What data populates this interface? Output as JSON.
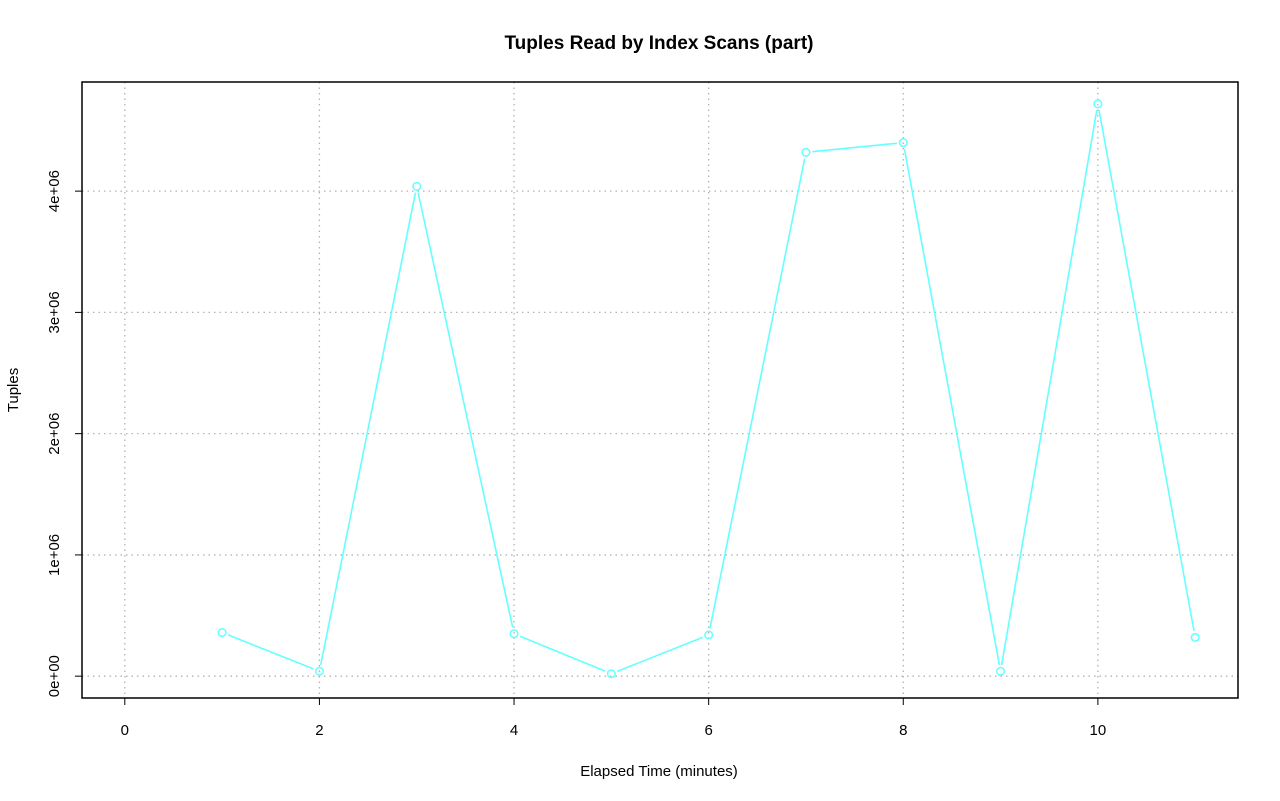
{
  "chart_data": {
    "type": "line",
    "title": "Tuples Read by Index Scans (part)",
    "xlabel": "Elapsed Time (minutes)",
    "ylabel": "Tuples",
    "xlim": [
      -0.44,
      11.44
    ],
    "ylim": [
      -180000,
      4900000
    ],
    "xticks": [
      0,
      2,
      4,
      6,
      8,
      10
    ],
    "xtick_labels": [
      "0",
      "2",
      "4",
      "6",
      "8",
      "10"
    ],
    "yticks": [
      0,
      1000000,
      2000000,
      3000000,
      4000000
    ],
    "ytick_labels": [
      "0e+00",
      "1e+06",
      "2e+06",
      "3e+06",
      "4e+06"
    ],
    "grid": true,
    "grid_style": "dotted",
    "series": [
      {
        "color": "#66ffff",
        "marker": "open-circle",
        "x": [
          1,
          2,
          3,
          4,
          5,
          6,
          7,
          8,
          9,
          10,
          11
        ],
        "y": [
          360000,
          40000,
          4040000,
          350000,
          20000,
          340000,
          4320000,
          4400000,
          40000,
          4720000,
          320000
        ]
      }
    ]
  }
}
